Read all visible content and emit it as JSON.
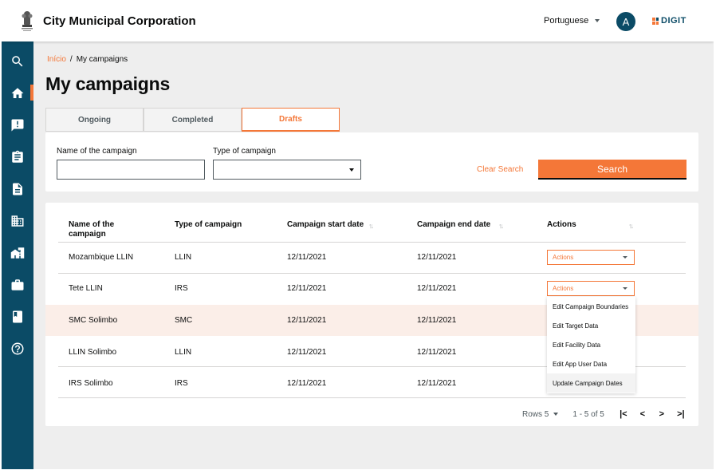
{
  "header": {
    "org_title": "City Municipal Corporation",
    "language": "Portuguese",
    "avatar_initial": "A",
    "brand": "DIGIT"
  },
  "sidebar": {
    "items": [
      {
        "icon": "search-icon"
      },
      {
        "icon": "home-icon",
        "active": true
      },
      {
        "icon": "complaint-icon"
      },
      {
        "icon": "clipboard-icon"
      },
      {
        "icon": "document-icon"
      },
      {
        "icon": "building-icon"
      },
      {
        "icon": "city-icon"
      },
      {
        "icon": "briefcase-icon"
      },
      {
        "icon": "book-icon"
      },
      {
        "icon": "help-icon"
      }
    ]
  },
  "breadcrumb": {
    "home": "Início",
    "separator": "/",
    "current": "My campaigns"
  },
  "page_title": "My campaigns",
  "tabs": [
    {
      "label": "Ongoing",
      "active": false
    },
    {
      "label": "Completed",
      "active": false
    },
    {
      "label": "Drafts",
      "active": true
    }
  ],
  "search": {
    "name_label": "Name of the campaign",
    "name_value": "",
    "type_label": "Type of campaign",
    "type_value": "",
    "clear_label": "Clear Search",
    "search_label": "Search"
  },
  "table": {
    "headers": {
      "name": "Name of the campaign",
      "type": "Type of campaign",
      "start": "Campaign start date",
      "end": "Campaign end date",
      "actions": "Actions"
    },
    "sort_glyph": "↑↓",
    "rows": [
      {
        "name": "Mozambique LLIN",
        "type": "LLIN",
        "start": "12/11/2021",
        "end": "12/11/2021",
        "action": "Actions"
      },
      {
        "name": "Tete LLIN",
        "type": "IRS",
        "start": "12/11/2021",
        "end": "12/11/2021",
        "action": "Actions"
      },
      {
        "name": "SMC Solimbo",
        "type": "SMC",
        "start": "12/11/2021",
        "end": "12/11/2021"
      },
      {
        "name": "LLIN Solimbo",
        "type": "LLIN",
        "start": "12/11/2021",
        "end": "12/11/2021"
      },
      {
        "name": "IRS Solimbo",
        "type": "IRS",
        "start": "12/11/2021",
        "end": "12/11/2021"
      }
    ]
  },
  "actions_menu": [
    "Edit Campaign Boundaries",
    "Edit Target Data",
    "Edit Facility Data",
    "Edit App User Data",
    "Update Campaign Dates"
  ],
  "pagination": {
    "rows_label": "Rows 5",
    "range": "1 - 5 of 5",
    "first": "|<",
    "prev": "<",
    "next": ">",
    "last": ">|"
  },
  "colors": {
    "primary": "#f47738",
    "secondary": "#0b4b66",
    "highlight_row": "#fbeee8"
  }
}
